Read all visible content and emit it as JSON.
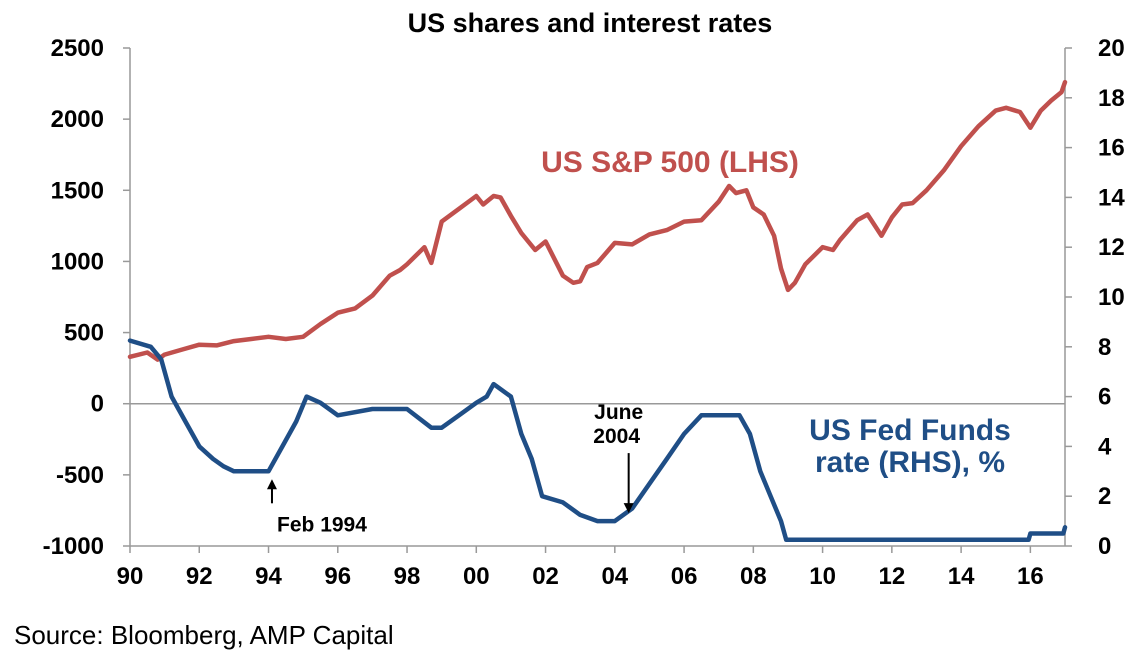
{
  "chart_data": {
    "type": "line",
    "title": "US shares and interest rates",
    "source": "Source: Bloomberg, AMP Capital",
    "x_ticks": [
      "90",
      "92",
      "94",
      "96",
      "98",
      "00",
      "02",
      "04",
      "06",
      "08",
      "10",
      "12",
      "14",
      "16"
    ],
    "left_axis": {
      "ticks": [
        "2500",
        "2000",
        "1500",
        "1000",
        "500",
        "0",
        "-500",
        "-1000"
      ],
      "range": [
        -1000,
        2500
      ]
    },
    "right_axis": {
      "ticks": [
        "20",
        "18",
        "16",
        "14",
        "12",
        "10",
        "8",
        "6",
        "4",
        "2",
        "0"
      ],
      "range": [
        0,
        20
      ]
    },
    "grid": false,
    "series": [
      {
        "name": "US S&P 500 (LHS)",
        "axis": "left",
        "color": "#c0504d",
        "x": [
          1990.0,
          1990.5,
          1990.8,
          1991.0,
          1991.5,
          1992.0,
          1992.5,
          1993.0,
          1993.5,
          1994.0,
          1994.5,
          1995.0,
          1995.5,
          1996.0,
          1996.5,
          1997.0,
          1997.5,
          1997.8,
          1998.0,
          1998.5,
          1998.7,
          1999.0,
          1999.5,
          2000.0,
          2000.2,
          2000.5,
          2000.7,
          2001.0,
          2001.3,
          2001.7,
          2002.0,
          2002.5,
          2002.8,
          2003.0,
          2003.2,
          2003.5,
          2004.0,
          2004.5,
          2005.0,
          2005.5,
          2006.0,
          2006.5,
          2007.0,
          2007.3,
          2007.5,
          2007.8,
          2008.0,
          2008.3,
          2008.6,
          2008.8,
          2009.0,
          2009.2,
          2009.5,
          2010.0,
          2010.3,
          2010.5,
          2011.0,
          2011.3,
          2011.7,
          2012.0,
          2012.3,
          2012.6,
          2013.0,
          2013.5,
          2014.0,
          2014.5,
          2015.0,
          2015.3,
          2015.7,
          2016.0,
          2016.3,
          2016.6,
          2016.9,
          2017.0
        ],
        "values": [
          330,
          360,
          310,
          345,
          380,
          415,
          410,
          440,
          455,
          470,
          455,
          470,
          560,
          640,
          670,
          760,
          900,
          940,
          980,
          1100,
          990,
          1280,
          1370,
          1460,
          1400,
          1460,
          1450,
          1320,
          1200,
          1080,
          1140,
          900,
          850,
          860,
          960,
          990,
          1130,
          1120,
          1190,
          1220,
          1280,
          1290,
          1420,
          1530,
          1480,
          1500,
          1380,
          1330,
          1180,
          950,
          800,
          850,
          980,
          1100,
          1080,
          1150,
          1290,
          1330,
          1180,
          1310,
          1400,
          1410,
          1500,
          1640,
          1810,
          1950,
          2060,
          2080,
          2050,
          1940,
          2060,
          2130,
          2190,
          2260
        ]
      },
      {
        "name": "US Fed Funds rate (RHS), %",
        "axis": "right",
        "color": "#1f4e86",
        "x": [
          1990.0,
          1990.6,
          1990.9,
          1991.2,
          1991.6,
          1992.0,
          1992.4,
          1992.7,
          1993.0,
          1994.0,
          1994.4,
          1994.8,
          1995.1,
          1995.5,
          1996.0,
          1997.0,
          1998.0,
          1998.7,
          1999.0,
          1999.5,
          2000.0,
          2000.3,
          2000.5,
          2001.0,
          2001.3,
          2001.6,
          2001.9,
          2002.5,
          2003.0,
          2003.5,
          2004.0,
          2004.5,
          2005.0,
          2005.5,
          2006.0,
          2006.5,
          2007.0,
          2007.6,
          2007.9,
          2008.2,
          2008.5,
          2008.8,
          2008.95,
          2009.5,
          2012.0,
          2014.0,
          2015.0,
          2015.95,
          2016.0,
          2016.95,
          2017.0
        ],
        "values": [
          8.25,
          8.0,
          7.5,
          6.0,
          5.0,
          4.0,
          3.5,
          3.2,
          3.0,
          3.0,
          4.0,
          5.0,
          6.0,
          5.75,
          5.25,
          5.5,
          5.5,
          4.75,
          4.75,
          5.25,
          5.75,
          6.0,
          6.5,
          6.0,
          4.5,
          3.5,
          2.0,
          1.75,
          1.25,
          1.0,
          1.0,
          1.5,
          2.5,
          3.5,
          4.5,
          5.25,
          5.25,
          5.25,
          4.5,
          3.0,
          2.0,
          1.0,
          0.25,
          0.25,
          0.25,
          0.25,
          0.25,
          0.25,
          0.5,
          0.5,
          0.75
        ]
      }
    ],
    "annotations": [
      {
        "text": "Feb 1994",
        "x": 1994.1,
        "y_right": 3.0
      },
      {
        "text": "June",
        "text2": "2004",
        "x": 2004.4,
        "y_right": 1.0
      }
    ],
    "legend": {
      "sp_label": "US S&P 500 (LHS)",
      "ff_label_1": "US Fed Funds",
      "ff_label_2": "rate (RHS), %"
    }
  }
}
